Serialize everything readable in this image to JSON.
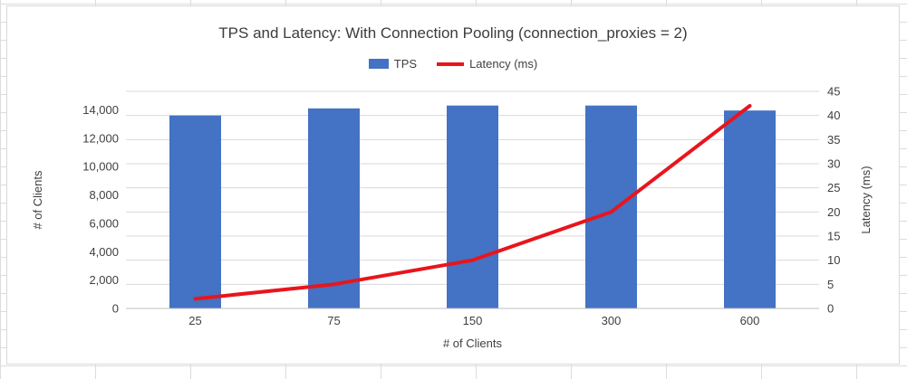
{
  "chart": {
    "title": "TPS and Latency: With Connection Pooling (connection_proxies = 2)"
  },
  "chart_data": {
    "type": "bar+line",
    "title": "TPS and Latency: With Connection Pooling (connection_proxies = 2)",
    "categories": [
      "25",
      "75",
      "150",
      "300",
      "600"
    ],
    "series": [
      {
        "name": "TPS",
        "type": "bar",
        "axis": "left",
        "color": "#4472c4",
        "values": [
          13600,
          14100,
          14300,
          14300,
          13950
        ]
      },
      {
        "name": "Latency (ms)",
        "type": "line",
        "axis": "right",
        "color": "#e8151d",
        "values": [
          2,
          5,
          10,
          20,
          42
        ]
      }
    ],
    "xlabel": "# of Clients",
    "ylabel_left": "# of Clients",
    "ylabel_right": "Latency (ms)",
    "left_axis": {
      "min": 0,
      "max": 15300,
      "tick_interval": 2000,
      "tick_values": [
        0,
        2000,
        4000,
        6000,
        8000,
        10000,
        12000,
        14000
      ],
      "tick_labels": [
        "0",
        "2,000",
        "4,000",
        "6,000",
        "8,000",
        "10,000",
        "12,000",
        "14,000"
      ]
    },
    "right_axis": {
      "min": 0,
      "max": 45,
      "tick_interval": 5,
      "tick_values": [
        0,
        5,
        10,
        15,
        20,
        25,
        30,
        35,
        40,
        45
      ],
      "tick_labels": [
        "0",
        "5",
        "10",
        "15",
        "20",
        "25",
        "30",
        "35",
        "40",
        "45"
      ]
    },
    "grid": true,
    "legend_position": "top",
    "grid_color": "#d9d9d9",
    "axis_line_color": "#bfbfbf",
    "text_color": "#404040"
  }
}
